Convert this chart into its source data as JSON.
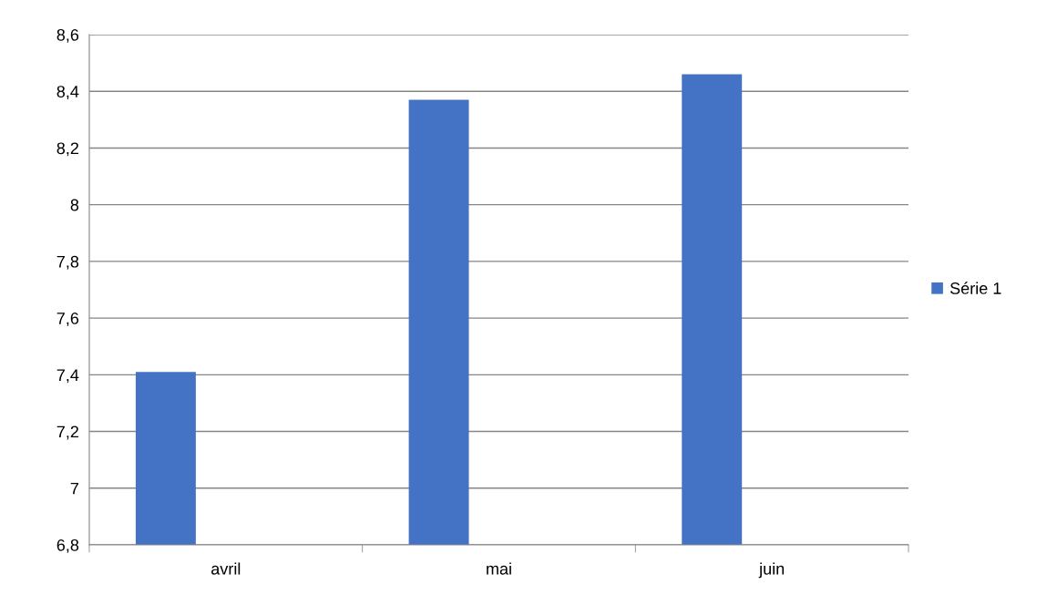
{
  "chart_data": {
    "type": "bar",
    "categories": [
      "avril",
      "mai",
      "juin"
    ],
    "series": [
      {
        "name": "Série 1",
        "color": "#4472c4",
        "values": [
          7.41,
          8.37,
          8.46
        ]
      }
    ],
    "ylim": [
      6.8,
      8.6
    ],
    "yticks": [
      {
        "value": 6.8,
        "label": "6,8"
      },
      {
        "value": 7,
        "label": "7"
      },
      {
        "value": 7.2,
        "label": "7,2"
      },
      {
        "value": 7.4,
        "label": "7,4"
      },
      {
        "value": 7.6,
        "label": "7,6"
      },
      {
        "value": 7.8,
        "label": "7,8"
      },
      {
        "value": 8,
        "label": "8"
      },
      {
        "value": 8.2,
        "label": "8,2"
      },
      {
        "value": 8.4,
        "label": "8,4"
      },
      {
        "value": 8.6,
        "label": "8,6"
      }
    ],
    "grid": "y",
    "legend": "right"
  }
}
